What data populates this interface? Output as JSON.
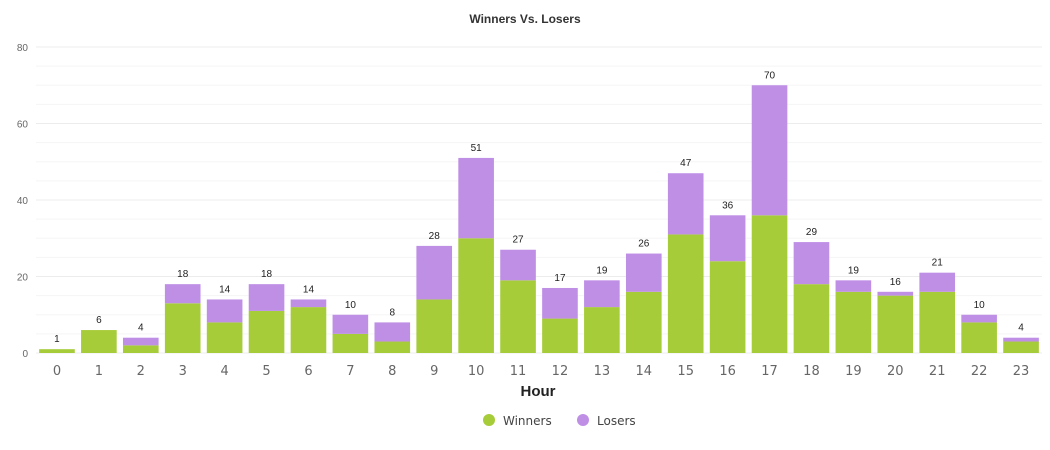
{
  "chart_data": {
    "type": "bar",
    "stacked": true,
    "title": "Winners Vs. Losers",
    "xlabel": "Hour",
    "ylabel": "",
    "ylim": [
      0,
      80
    ],
    "yticks": [
      0,
      20,
      40,
      60,
      80
    ],
    "grid": true,
    "legend_position": "bottom",
    "categories": [
      "0",
      "1",
      "2",
      "3",
      "4",
      "5",
      "6",
      "7",
      "8",
      "9",
      "10",
      "11",
      "12",
      "13",
      "14",
      "15",
      "16",
      "17",
      "18",
      "19",
      "20",
      "21",
      "22",
      "23"
    ],
    "series": [
      {
        "name": "Winners",
        "color": "#a7cc3a",
        "values": [
          1,
          6,
          2,
          13,
          8,
          11,
          12,
          5,
          3,
          14,
          30,
          19,
          9,
          12,
          16,
          31,
          24,
          36,
          18,
          16,
          15,
          16,
          8,
          3
        ]
      },
      {
        "name": "Losers",
        "color": "#bf8fe6",
        "values": [
          0,
          0,
          2,
          5,
          6,
          7,
          2,
          5,
          5,
          14,
          21,
          8,
          8,
          7,
          10,
          16,
          12,
          34,
          11,
          3,
          1,
          5,
          2,
          1
        ]
      }
    ],
    "totals": [
      1,
      6,
      4,
      18,
      14,
      18,
      14,
      10,
      8,
      28,
      51,
      27,
      17,
      19,
      26,
      47,
      36,
      70,
      29,
      19,
      16,
      21,
      10,
      4
    ]
  }
}
